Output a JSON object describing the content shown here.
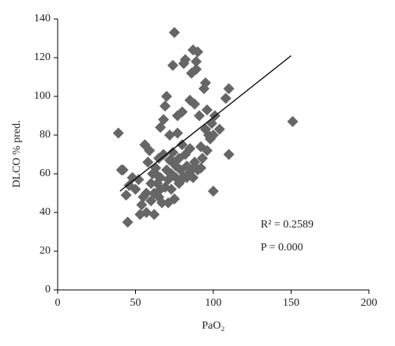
{
  "chart_data": {
    "type": "scatter",
    "x_label": "PaO₂",
    "y_label": "DLCO % pred.",
    "annotations": [
      "R² = 0.2589",
      "P = 0.000"
    ],
    "xlim": [
      0,
      200
    ],
    "xticks": [
      0,
      50,
      100,
      150,
      200
    ],
    "ylim": [
      0,
      140
    ],
    "yticks": [
      0,
      20,
      40,
      60,
      80,
      100,
      120,
      140
    ],
    "grid": false,
    "series": [
      {
        "color": "#666666",
        "x": [
          39,
          41,
          44,
          45,
          46,
          50,
          52,
          53,
          55,
          56,
          57,
          57,
          58,
          59,
          60,
          60,
          61,
          62,
          62,
          63,
          64,
          65,
          65,
          66,
          66,
          67,
          68,
          68,
          69,
          69,
          70,
          70,
          71,
          72,
          72,
          73,
          73,
          74,
          74,
          75,
          75,
          76,
          76,
          77,
          77,
          78,
          78,
          79,
          80,
          80,
          81,
          81,
          82,
          82,
          83,
          84,
          85,
          85,
          86,
          86,
          87,
          87,
          88,
          88,
          89,
          89,
          90,
          90,
          91,
          92,
          93,
          94,
          95,
          95,
          96,
          96,
          97,
          98,
          99,
          100,
          101,
          104,
          108,
          110,
          110,
          151,
          42,
          48,
          54,
          63,
          66,
          71,
          74,
          79,
          83,
          92,
          100
        ],
        "y": [
          81,
          62,
          49,
          35,
          54,
          52,
          57,
          39,
          48,
          75,
          50,
          40,
          66,
          72,
          55,
          46,
          60,
          50,
          39,
          63,
          55,
          48,
          68,
          84,
          58,
          45,
          70,
          88,
          53,
          95,
          100,
          62,
          57,
          80,
          67,
          52,
          60,
          71,
          116,
          133,
          47,
          64,
          58,
          81,
          90,
          55,
          68,
          62,
          75,
          92,
          58,
          117,
          119,
          70,
          64,
          60,
          73,
          98,
          62,
          112,
          124,
          58,
          66,
          96,
          114,
          118,
          123,
          62,
          90,
          74,
          68,
          104,
          107,
          83,
          72,
          93,
          80,
          78,
          86,
          51,
          90,
          83,
          99,
          70,
          104,
          87,
          62,
          58,
          44,
          60,
          52,
          45,
          66,
          57,
          58,
          63,
          80
        ]
      }
    ],
    "trend_line": {
      "color": "#000000",
      "x": [
        40,
        150
      ],
      "y": [
        51,
        121
      ]
    }
  }
}
